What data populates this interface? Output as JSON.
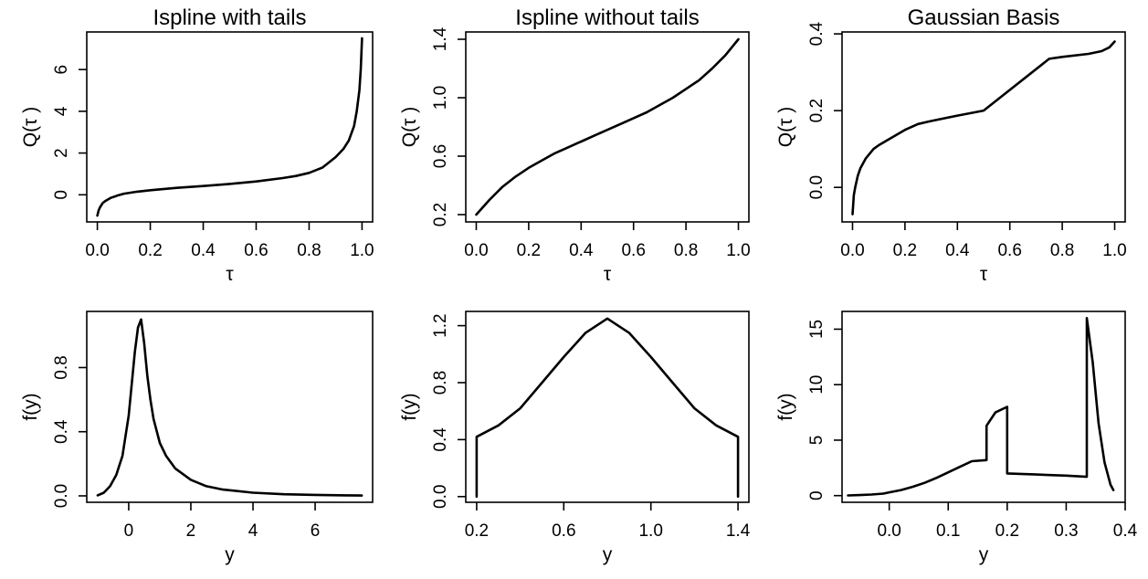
{
  "chart_data": [
    {
      "type": "line",
      "title": "Ispline with tails",
      "xlabel": "τ",
      "ylabel": "Q(τ )",
      "xlim": [
        -0.04,
        1.04
      ],
      "ylim": [
        -1.3,
        7.8
      ],
      "xticks": [
        0.0,
        0.2,
        0.4,
        0.6,
        0.8,
        1.0
      ],
      "xticklabels": [
        "0.0",
        "0.2",
        "0.4",
        "0.6",
        "0.8",
        "1.0"
      ],
      "yticks": [
        0,
        2,
        4,
        6
      ],
      "yticklabels": [
        "0",
        "2",
        "4",
        "6"
      ],
      "x": [
        0.0,
        0.005,
        0.01,
        0.02,
        0.03,
        0.05,
        0.08,
        0.1,
        0.15,
        0.2,
        0.3,
        0.4,
        0.5,
        0.6,
        0.7,
        0.75,
        0.8,
        0.85,
        0.9,
        0.93,
        0.95,
        0.97,
        0.98,
        0.99,
        0.995,
        1.0
      ],
      "y": [
        -1.0,
        -0.75,
        -0.6,
        -0.4,
        -0.3,
        -0.15,
        -0.02,
        0.05,
        0.15,
        0.22,
        0.33,
        0.42,
        0.52,
        0.64,
        0.8,
        0.9,
        1.05,
        1.3,
        1.8,
        2.2,
        2.6,
        3.3,
        4.0,
        5.0,
        6.0,
        7.5
      ]
    },
    {
      "type": "line",
      "title": "Ispline without tails",
      "xlabel": "τ",
      "ylabel": "Q(τ )",
      "xlim": [
        -0.04,
        1.04
      ],
      "ylim": [
        0.15,
        1.45
      ],
      "xticks": [
        0.0,
        0.2,
        0.4,
        0.6,
        0.8,
        1.0
      ],
      "xticklabels": [
        "0.0",
        "0.2",
        "0.4",
        "0.6",
        "0.8",
        "1.0"
      ],
      "yticks": [
        0.2,
        0.6,
        1.0,
        1.4
      ],
      "yticklabels": [
        "0.2",
        "0.6",
        "1.0",
        "1.4"
      ],
      "x": [
        0.0,
        0.05,
        0.1,
        0.15,
        0.2,
        0.25,
        0.3,
        0.35,
        0.4,
        0.45,
        0.5,
        0.55,
        0.6,
        0.65,
        0.7,
        0.75,
        0.8,
        0.85,
        0.9,
        0.95,
        1.0
      ],
      "y": [
        0.2,
        0.3,
        0.39,
        0.46,
        0.52,
        0.57,
        0.62,
        0.66,
        0.7,
        0.74,
        0.78,
        0.82,
        0.86,
        0.9,
        0.95,
        1.0,
        1.06,
        1.12,
        1.2,
        1.29,
        1.4
      ]
    },
    {
      "type": "line",
      "title": "Gaussian Basis",
      "xlabel": "τ",
      "ylabel": "Q(τ )",
      "xlim": [
        -0.04,
        1.04
      ],
      "ylim": [
        -0.09,
        0.405
      ],
      "xticks": [
        0.0,
        0.2,
        0.4,
        0.6,
        0.8,
        1.0
      ],
      "xticklabels": [
        "0.0",
        "0.2",
        "0.4",
        "0.6",
        "0.8",
        "1.0"
      ],
      "yticks": [
        0.0,
        0.2,
        0.4
      ],
      "yticklabels": [
        "0.0",
        "0.2",
        "0.4"
      ],
      "x": [
        0.0,
        0.005,
        0.01,
        0.02,
        0.03,
        0.05,
        0.08,
        0.1,
        0.15,
        0.2,
        0.25,
        0.3,
        0.4,
        0.5,
        0.75,
        0.8,
        0.9,
        0.95,
        0.98,
        1.0
      ],
      "y": [
        -0.07,
        -0.02,
        0.0,
        0.03,
        0.05,
        0.075,
        0.1,
        0.11,
        0.13,
        0.15,
        0.165,
        0.173,
        0.187,
        0.2,
        0.335,
        0.34,
        0.348,
        0.355,
        0.365,
        0.38
      ]
    },
    {
      "type": "line",
      "title": "",
      "xlabel": "y",
      "ylabel": "f(y)",
      "xlim": [
        -1.35,
        7.85
      ],
      "ylim": [
        -0.04,
        1.15
      ],
      "xticks": [
        0,
        2,
        4,
        6
      ],
      "xticklabels": [
        "0",
        "2",
        "4",
        "6"
      ],
      "yticks": [
        0.0,
        0.4,
        0.8
      ],
      "yticklabels": [
        "0.0",
        "0.4",
        "0.8"
      ],
      "x": [
        -1.0,
        -0.8,
        -0.6,
        -0.4,
        -0.2,
        0.0,
        0.1,
        0.2,
        0.3,
        0.4,
        0.5,
        0.6,
        0.7,
        0.8,
        1.0,
        1.2,
        1.5,
        2.0,
        2.5,
        3.0,
        4.0,
        5.0,
        6.0,
        7.0,
        7.5
      ],
      "y": [
        0.003,
        0.02,
        0.06,
        0.13,
        0.25,
        0.5,
        0.7,
        0.9,
        1.05,
        1.1,
        0.95,
        0.75,
        0.6,
        0.48,
        0.33,
        0.25,
        0.17,
        0.1,
        0.06,
        0.04,
        0.02,
        0.01,
        0.006,
        0.003,
        0.002
      ]
    },
    {
      "type": "line",
      "title": "",
      "xlabel": "y",
      "ylabel": "f(y)",
      "xlim": [
        0.15,
        1.45
      ],
      "ylim": [
        -0.04,
        1.3
      ],
      "xticks": [
        0.2,
        0.6,
        1.0,
        1.4
      ],
      "xticklabels": [
        "0.2",
        "0.6",
        "1.0",
        "1.4"
      ],
      "yticks": [
        0.0,
        0.4,
        0.8,
        1.2
      ],
      "yticklabels": [
        "0.0",
        "0.4",
        "0.8",
        "1.2"
      ],
      "x": [
        0.2,
        0.2,
        0.3,
        0.4,
        0.5,
        0.6,
        0.7,
        0.8,
        0.9,
        1.0,
        1.1,
        1.2,
        1.3,
        1.4,
        1.4
      ],
      "y": [
        0.0,
        0.42,
        0.5,
        0.62,
        0.8,
        0.98,
        1.15,
        1.25,
        1.15,
        0.98,
        0.8,
        0.62,
        0.5,
        0.42,
        0.0
      ]
    },
    {
      "type": "line",
      "title": "",
      "xlabel": "y",
      "ylabel": "f(y)",
      "xlim": [
        -0.08,
        0.4
      ],
      "ylim": [
        -0.6,
        16.6
      ],
      "xticks": [
        0.0,
        0.1,
        0.2,
        0.3,
        0.4
      ],
      "xticklabels": [
        "0.0",
        "0.1",
        "0.2",
        "0.3",
        "0.4"
      ],
      "yticks": [
        0,
        5,
        10,
        15
      ],
      "yticklabels": [
        "0",
        "5",
        "10",
        "15"
      ],
      "x": [
        -0.07,
        -0.05,
        -0.03,
        -0.01,
        0.0,
        0.02,
        0.04,
        0.06,
        0.08,
        0.1,
        0.12,
        0.14,
        0.165,
        0.165,
        0.18,
        0.2,
        0.2,
        0.25,
        0.3,
        0.335,
        0.335,
        0.345,
        0.355,
        0.365,
        0.375,
        0.38
      ],
      "y": [
        0.02,
        0.05,
        0.1,
        0.18,
        0.3,
        0.5,
        0.8,
        1.15,
        1.6,
        2.1,
        2.6,
        3.1,
        3.2,
        6.3,
        7.5,
        8.0,
        2.0,
        1.9,
        1.8,
        1.7,
        16.0,
        12.0,
        6.5,
        3.0,
        1.0,
        0.5
      ]
    }
  ]
}
